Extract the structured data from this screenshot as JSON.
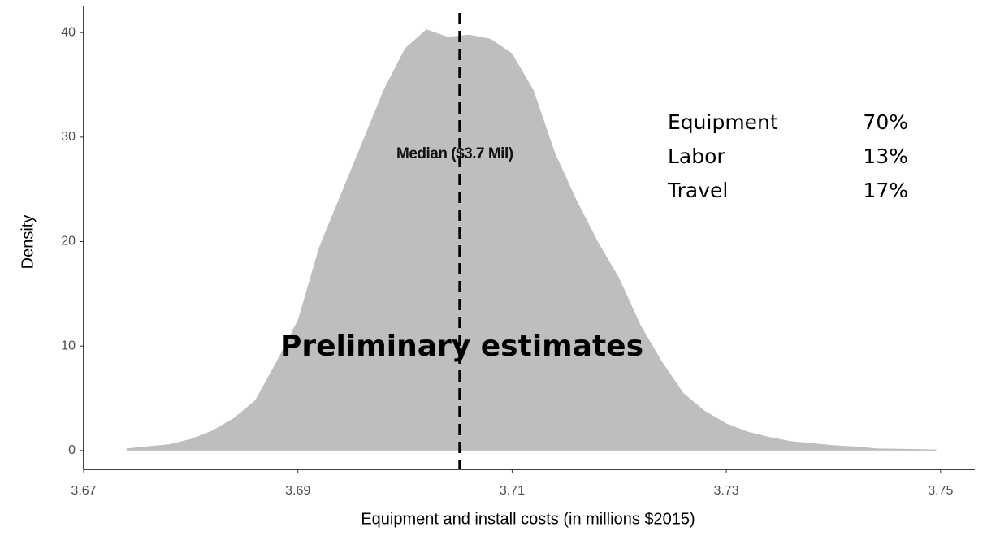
{
  "chart_data": {
    "type": "area",
    "x_label": "Equipment and install costs (in millions $2015)",
    "y_label": "Density",
    "x": [
      3.674,
      3.678,
      3.68,
      3.682,
      3.684,
      3.686,
      3.688,
      3.69,
      3.692,
      3.694,
      3.696,
      3.698,
      3.7,
      3.702,
      3.704,
      3.706,
      3.708,
      3.71,
      3.712,
      3.714,
      3.716,
      3.718,
      3.72,
      3.722,
      3.724,
      3.726,
      3.728,
      3.73,
      3.732,
      3.734,
      3.736,
      3.738,
      3.74,
      3.742,
      3.744,
      3.7496
    ],
    "values": [
      0.2,
      0.6,
      1.1,
      1.9,
      3.1,
      4.8,
      8.5,
      12.5,
      19.5,
      24.5,
      29.5,
      34.5,
      38.5,
      40.3,
      39.6,
      39.8,
      39.4,
      38,
      34.5,
      28.5,
      24,
      20,
      16.5,
      12,
      8.5,
      5.5,
      3.8,
      2.6,
      1.8,
      1.3,
      0.9,
      0.7,
      0.5,
      0.4,
      0.2,
      0.1
    ],
    "color": "#bebebe",
    "xlim": [
      3.67,
      3.7532
    ],
    "ylim": [
      -1.8,
      42.5
    ],
    "xticks": [
      3.67,
      3.69,
      3.71,
      3.73,
      3.75
    ],
    "yticks": [
      0,
      10,
      20,
      30,
      40
    ],
    "median": {
      "x": 3.7051,
      "label": "Median ($3.7 Mil)"
    },
    "annotation": "Preliminary estimates",
    "breakdown": {
      "categories": [
        "Equipment",
        "Labor",
        "Travel"
      ],
      "values": [
        70,
        13,
        17
      ],
      "value_labels": [
        "70%",
        "13%",
        "17%"
      ]
    }
  }
}
